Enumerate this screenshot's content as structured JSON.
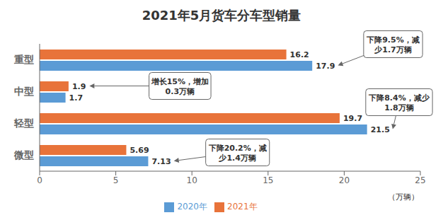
{
  "chart_data": {
    "type": "bar",
    "orientation": "horizontal",
    "title": "2021年5月货车分车型销量",
    "categories": [
      "微型",
      "轻型",
      "中型",
      "重型"
    ],
    "series": [
      {
        "name": "2021年",
        "color": "#E8733A",
        "values": [
          5.69,
          19.7,
          1.9,
          16.2
        ]
      },
      {
        "name": "2020年",
        "color": "#5B9BD5",
        "values": [
          7.13,
          21.5,
          1.7,
          17.9
        ]
      }
    ],
    "xlabel": "（万辆）",
    "xlim": [
      0,
      25
    ],
    "xticks": [
      0,
      5,
      10,
      15,
      20,
      25
    ],
    "data_labels": true,
    "legend": "bottom",
    "grid": false,
    "annotations": [
      {
        "text": "下降9.5%，减\n少1.7万辆",
        "category": "重型",
        "series": "2020年"
      },
      {
        "text": "增长15%，增加\n0.3万辆",
        "category": "中型",
        "series": "2021年"
      },
      {
        "text": "下降8.4%，减少\n1.8万辆",
        "category": "轻型",
        "series": "2020年"
      },
      {
        "text": "下降20.2%，减\n少1.4万辆",
        "category": "微型",
        "series": "2020年"
      }
    ]
  }
}
